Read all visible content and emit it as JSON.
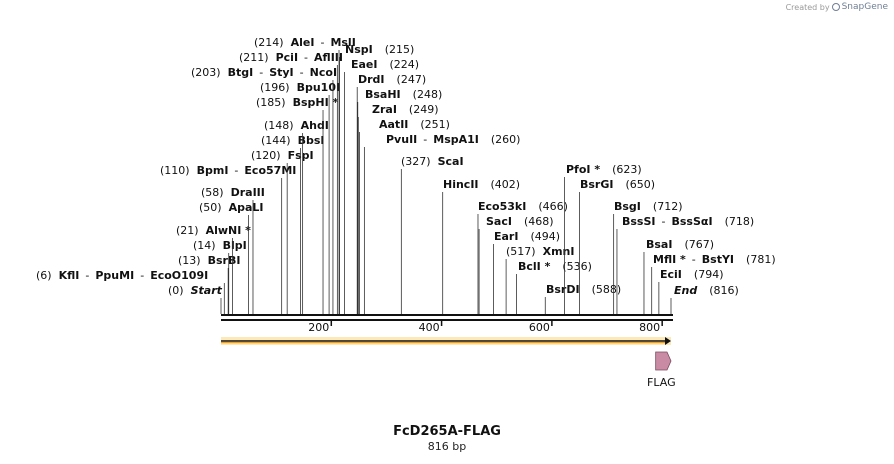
{
  "credit": {
    "prefix": "Created by",
    "brand": "SnapGene"
  },
  "sequence": {
    "name": "FcD265A-FLAG",
    "length_label": "816 bp",
    "length": 816
  },
  "ruler_ticks": [
    "200",
    "400",
    "600",
    "800"
  ],
  "sites": [
    {
      "pos": "(0)",
      "names": [
        "Start"
      ],
      "italic": true
    },
    {
      "pos": "(6)",
      "names": [
        "KflI",
        "PpuMI",
        "EcoO109I"
      ]
    },
    {
      "pos": "(13)",
      "names": [
        "BsrBI"
      ]
    },
    {
      "pos": "(14)",
      "names": [
        "BlpI"
      ]
    },
    {
      "pos": "(21)",
      "names": [
        "AlwNI *"
      ]
    },
    {
      "pos": "(50)",
      "names": [
        "ApaLI"
      ]
    },
    {
      "pos": "(58)",
      "names": [
        "DraIII"
      ]
    },
    {
      "pos": "(110)",
      "names": [
        "BpmI",
        "Eco57MI"
      ]
    },
    {
      "pos": "(120)",
      "names": [
        "FspI"
      ]
    },
    {
      "pos": "(144)",
      "names": [
        "BbsI"
      ]
    },
    {
      "pos": "(148)",
      "names": [
        "AhdI"
      ]
    },
    {
      "pos": "(185)",
      "names": [
        "BspHI *"
      ]
    },
    {
      "pos": "(196)",
      "names": [
        "Bpu10I"
      ]
    },
    {
      "pos": "(203)",
      "names": [
        "BtgI",
        "StyI",
        "NcoI"
      ]
    },
    {
      "pos": "(211)",
      "names": [
        "PciI",
        "AflIII"
      ]
    },
    {
      "pos": "(214)",
      "names": [
        "AleI",
        "MslI"
      ]
    },
    {
      "pos": "(215)",
      "names": [
        "NspI"
      ]
    },
    {
      "pos": "(224)",
      "names": [
        "EaeI"
      ]
    },
    {
      "pos": "(247)",
      "names": [
        "DrdI"
      ]
    },
    {
      "pos": "(248)",
      "names": [
        "BsaHI"
      ]
    },
    {
      "pos": "(249)",
      "names": [
        "ZraI"
      ]
    },
    {
      "pos": "(251)",
      "names": [
        "AatII"
      ]
    },
    {
      "pos": "(260)",
      "names": [
        "PvuII",
        "MspA1I"
      ]
    },
    {
      "pos": "(327)",
      "names": [
        "ScaI"
      ]
    },
    {
      "pos": "(402)",
      "names": [
        "HincII"
      ]
    },
    {
      "pos": "(466)",
      "names": [
        "Eco53kI"
      ]
    },
    {
      "pos": "(468)",
      "names": [
        "SacI"
      ]
    },
    {
      "pos": "(494)",
      "names": [
        "EarI"
      ]
    },
    {
      "pos": "(517)",
      "names": [
        "XmnI"
      ]
    },
    {
      "pos": "(536)",
      "names": [
        "BclI *"
      ]
    },
    {
      "pos": "(588)",
      "names": [
        "BsrDI"
      ]
    },
    {
      "pos": "(623)",
      "names": [
        "PfoI *"
      ]
    },
    {
      "pos": "(650)",
      "names": [
        "BsrGI"
      ]
    },
    {
      "pos": "(712)",
      "names": [
        "BsgI"
      ]
    },
    {
      "pos": "(718)",
      "names": [
        "BssSI",
        "BssSαI"
      ]
    },
    {
      "pos": "(767)",
      "names": [
        "BsaI"
      ]
    },
    {
      "pos": "(781)",
      "names": [
        "MflI *",
        "BstYI"
      ]
    },
    {
      "pos": "(794)",
      "names": [
        "EciI"
      ]
    },
    {
      "pos": "(816)",
      "names": [
        "End"
      ],
      "italic": true
    }
  ],
  "features": [
    {
      "name": "FLAG",
      "start": 790,
      "end": 816,
      "color": "#c98aa4"
    }
  ],
  "orf": {
    "start": 0,
    "end": 816,
    "color": "#f2a11c"
  }
}
